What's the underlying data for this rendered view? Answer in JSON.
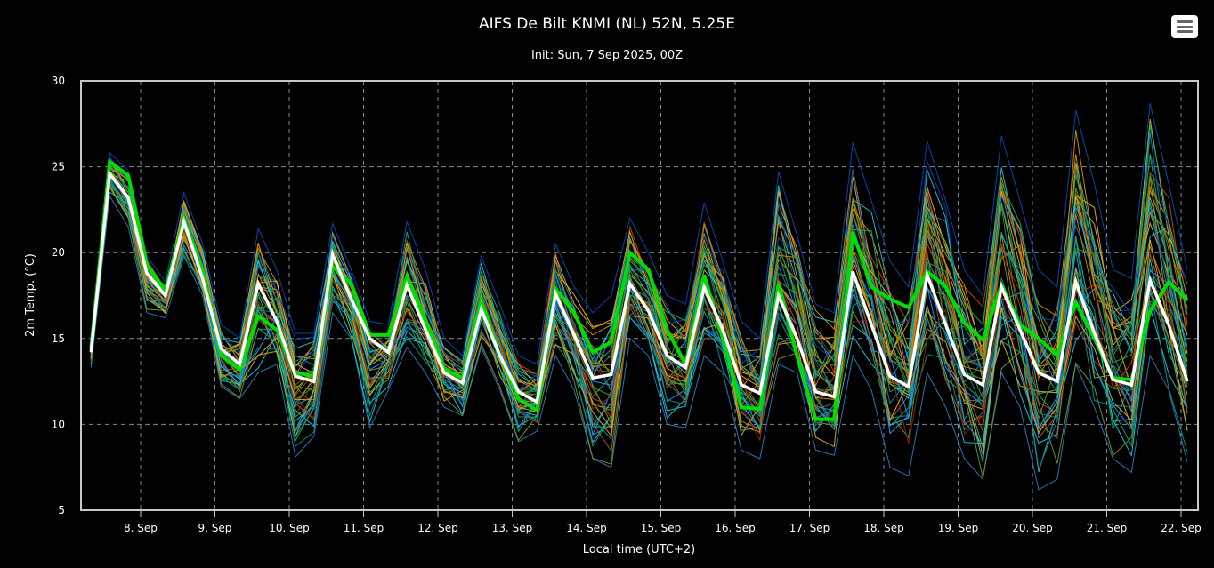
{
  "chart_data": {
    "type": "line",
    "title": "AIFS De Bilt KNMI (NL) 52N, 5.25E",
    "subtitle": "Init: Sun, 7 Sep 2025, 00Z",
    "xlabel": "Local time (UTC+2)",
    "ylabel": "2m Temp. (°C)",
    "ylim": [
      5,
      30
    ],
    "yticks": [
      5,
      10,
      15,
      20,
      25,
      30
    ],
    "xticks": [
      "8. Sep",
      "9. Sep",
      "10. Sep",
      "11. Sep",
      "12. Sep",
      "13. Sep",
      "14. Sep",
      "15. Sep",
      "16. Sep",
      "17. Sep",
      "18. Sep",
      "19. Sep",
      "20. Sep",
      "21. Sep",
      "22. Sep"
    ],
    "grid": true,
    "legend": "none",
    "x_start": "2025-09-07 08:00 local",
    "x_step_hours": 6,
    "colors": {
      "white_line": "#ffffff",
      "green_line": "#00dd00",
      "members": [
        "#1f77b4",
        "#0047ab",
        "#17becf",
        "#008b8b",
        "#2ca02c",
        "#00a86b",
        "#d4a017",
        "#cc8800",
        "#b8860b",
        "#a0522d",
        "#c04000",
        "#8b2500",
        "#1e90ff",
        "#20b2aa",
        "#6b8e23",
        "#daa520"
      ]
    },
    "series": [
      {
        "values": [
          14.2,
          24.6,
          23.2,
          18.8,
          17.5,
          21.8,
          18.5,
          14.4,
          13.5,
          18.2,
          16.0,
          12.8,
          12.5,
          19.9,
          17.3,
          15.0,
          14.2,
          18.1,
          15.5,
          13.0,
          12.4,
          16.7,
          14.0,
          11.9,
          11.3,
          17.6,
          15.2,
          12.7,
          12.9,
          18.2,
          16.6,
          14.0,
          13.3,
          18.0,
          15.5,
          12.3,
          11.8,
          17.5,
          15.0,
          11.9,
          11.6,
          18.9,
          15.8,
          12.8,
          12.2,
          18.7,
          15.8,
          12.9,
          12.3,
          18.0,
          15.5,
          13.0,
          12.5,
          18.3,
          15.3,
          12.6,
          12.3,
          18.4,
          15.8,
          12.5
        ]
      },
      {
        "values": [
          14.4,
          25.3,
          24.5,
          19.3,
          17.8,
          22.0,
          19.0,
          14.0,
          13.2,
          16.3,
          15.5,
          13.0,
          12.8,
          19.2,
          18.2,
          15.2,
          15.2,
          18.6,
          16.0,
          13.2,
          12.7,
          17.2,
          14.0,
          11.5,
          10.8,
          17.9,
          16.5,
          14.2,
          14.8,
          20.0,
          19.0,
          15.5,
          13.5,
          18.7,
          15.0,
          11.0,
          10.9,
          18.2,
          14.0,
          10.3,
          10.3,
          21.2,
          18.0,
          17.3,
          16.8,
          18.9,
          18.0,
          15.9,
          14.9,
          18.1,
          15.8,
          15.0,
          14.0,
          17.1,
          15.0,
          12.7,
          12.6,
          16.6,
          18.3,
          17.2
        ]
      }
    ],
    "ensemble_max": [
      14.5,
      25.8,
      24.8,
      19.8,
      18.3,
      23.5,
      20.5,
      15.8,
      15.0,
      21.4,
      19.0,
      15.3,
      15.3,
      21.7,
      19.0,
      16.0,
      15.8,
      21.8,
      19.0,
      15.0,
      14.0,
      19.8,
      17.0,
      14.0,
      13.5,
      20.5,
      18.0,
      16.5,
      17.5,
      22.0,
      20.0,
      17.5,
      17.0,
      22.9,
      19.5,
      16.0,
      15.0,
      24.7,
      21.0,
      17.0,
      16.5,
      26.4,
      23.0,
      19.5,
      18.0,
      26.5,
      23.0,
      19.0,
      17.5,
      26.8,
      23.0,
      19.0,
      18.0,
      28.3,
      24.0,
      19.0,
      18.5,
      28.7,
      24.0,
      19.0
    ],
    "ensemble_min": [
      13.3,
      23.3,
      21.5,
      16.5,
      16.2,
      19.8,
      17.5,
      12.2,
      11.5,
      13.0,
      13.5,
      8.1,
      9.3,
      16.5,
      15.0,
      9.8,
      12.0,
      14.5,
      13.0,
      11.0,
      10.5,
      14.5,
      12.0,
      9.0,
      9.6,
      14.0,
      12.0,
      8.0,
      7.5,
      15.0,
      14.0,
      10.0,
      9.8,
      14.0,
      13.0,
      8.5,
      8.0,
      13.5,
      13.0,
      8.5,
      8.2,
      14.0,
      12.0,
      7.5,
      7.0,
      13.0,
      11.0,
      8.0,
      6.8,
      13.0,
      11.0,
      6.2,
      6.8,
      13.5,
      11.0,
      8.0,
      7.2,
      14.0,
      12.0,
      7.8
    ]
  },
  "menu": {
    "icon": "hamburger-menu-icon"
  }
}
